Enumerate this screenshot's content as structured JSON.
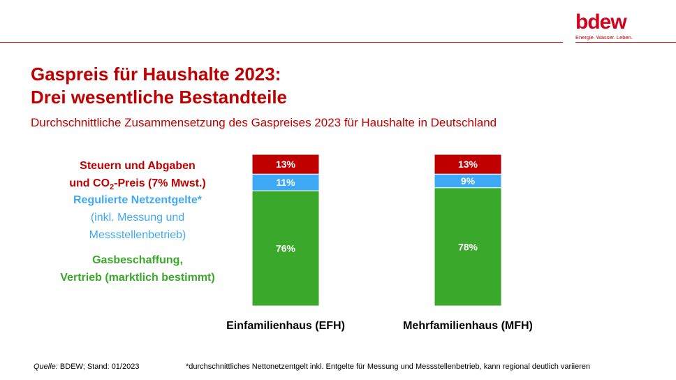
{
  "brand": {
    "logo_text": "bdew",
    "tagline": "Energie. Wasser. Leben."
  },
  "title": {
    "line1": "Gaspreis für Haushalte 2023:",
    "line2": "Drei wesentliche Bestandteile"
  },
  "subtitle": "Durchschnittliche Zusammensetzung des Gaspreises 2023 für Haushalte in Deutschland",
  "legend": {
    "red_line1": "Steuern und Abgaben",
    "red_line2_pre": "und CO",
    "red_line2_sub": "2",
    "red_line2_post": "-Preis (7% Mwst.)",
    "blue_line1": "Regulierte Netzentgelte*",
    "blue_line2": "(inkl. Messung und",
    "blue_line3": "Messstellenbetrieb)",
    "green_line1": "Gasbeschaffung,",
    "green_line2": "Vertrieb (marktlich bestimmt)"
  },
  "colors": {
    "red": "#c00000",
    "blue": "#3fa9f5",
    "green": "#3aa82a"
  },
  "chart_data": {
    "type": "bar",
    "stacked": true,
    "unit": "%",
    "categories": [
      "Einfamilienhaus (EFH)",
      "Mehrfamilienhaus (MFH)"
    ],
    "series": [
      {
        "color": "#3aa82a",
        "values": [
          76,
          78
        ],
        "labels": [
          "76%",
          "78%"
        ]
      },
      {
        "color": "#3fa9f5",
        "values": [
          11,
          9
        ],
        "labels": [
          "11%",
          "9%"
        ]
      },
      {
        "color": "#c00000",
        "values": [
          13,
          13
        ],
        "labels": [
          "13%",
          "13%"
        ]
      }
    ],
    "ylim": [
      0,
      100
    ],
    "grid": false
  },
  "footer": {
    "source_label": "Quelle:",
    "source_text": " BDEW; Stand: 01/2023",
    "note": "*durchschnittliches Nettonetzentgelt inkl. Entgelte für Messung und Messstellenbetrieb, kann regional deutlich variieren"
  }
}
